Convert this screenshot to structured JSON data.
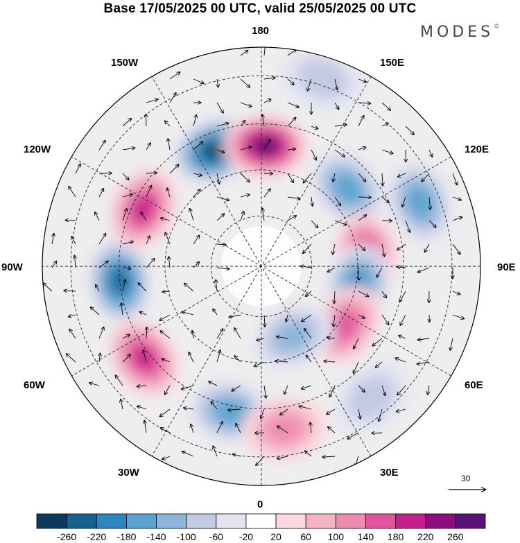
{
  "title": "Base 17/05/2025 00 UTC, valid 25/05/2025 00 UTC",
  "brand": "MODES",
  "brand_mark": "©",
  "longitude_labels": {
    "n": "180",
    "s": "0",
    "e": "90E",
    "w": "90W",
    "e150": "150E",
    "e120": "120E",
    "e60": "60E",
    "e30": "30E",
    "w150": "150W",
    "w120": "120W",
    "w60": "60W",
    "w30": "30W"
  },
  "reference_vector": {
    "label": "30"
  },
  "colorbar": {
    "colors": [
      "#0d3a5c",
      "#15628f",
      "#2d86bd",
      "#5aa3cf",
      "#8db6da",
      "#c2cbe4",
      "#e4e4f0",
      "#ffffff",
      "#f9d9df",
      "#f4b4c6",
      "#ee8cb0",
      "#e2559c",
      "#c41f8a",
      "#8e0c7c",
      "#5b1276"
    ],
    "labels": [
      "-260",
      "-220",
      "-180",
      "-140",
      "-100",
      "-60",
      "-20",
      "20",
      "60",
      "100",
      "140",
      "180",
      "220",
      "260"
    ]
  },
  "anomalies": [
    {
      "name": "low-150w",
      "lon": -158,
      "r": 0.57,
      "v": -270
    },
    {
      "name": "high-180",
      "lon": 178,
      "r": 0.55,
      "v": 270
    },
    {
      "name": "low-90w",
      "lon": -84,
      "r": 0.65,
      "v": -230
    },
    {
      "name": "high-120w",
      "lon": -116,
      "r": 0.6,
      "v": 190
    },
    {
      "name": "high-60w",
      "lon": -52,
      "r": 0.68,
      "v": 170
    },
    {
      "name": "low-130e",
      "lon": 132,
      "r": 0.53,
      "v": -130
    },
    {
      "name": "low-110e",
      "lon": 112,
      "r": 0.78,
      "v": -150
    },
    {
      "name": "high-95e",
      "lon": 96,
      "r": 0.48,
      "v": 190
    },
    {
      "name": "low-80e",
      "lon": 78,
      "r": 0.45,
      "v": -190
    },
    {
      "name": "high-55e",
      "lon": 55,
      "r": 0.47,
      "v": 160
    },
    {
      "name": "low-25e",
      "lon": 24,
      "r": 0.35,
      "v": -120
    },
    {
      "name": "low-40e",
      "lon": 40,
      "r": 0.78,
      "v": -80
    },
    {
      "name": "low-15w",
      "lon": -12,
      "r": 0.68,
      "v": -140
    },
    {
      "name": "high-5e",
      "lon": 8,
      "r": 0.75,
      "v": 90
    },
    {
      "name": "low-160e",
      "lon": 162,
      "r": 0.9,
      "v": -80
    }
  ]
}
